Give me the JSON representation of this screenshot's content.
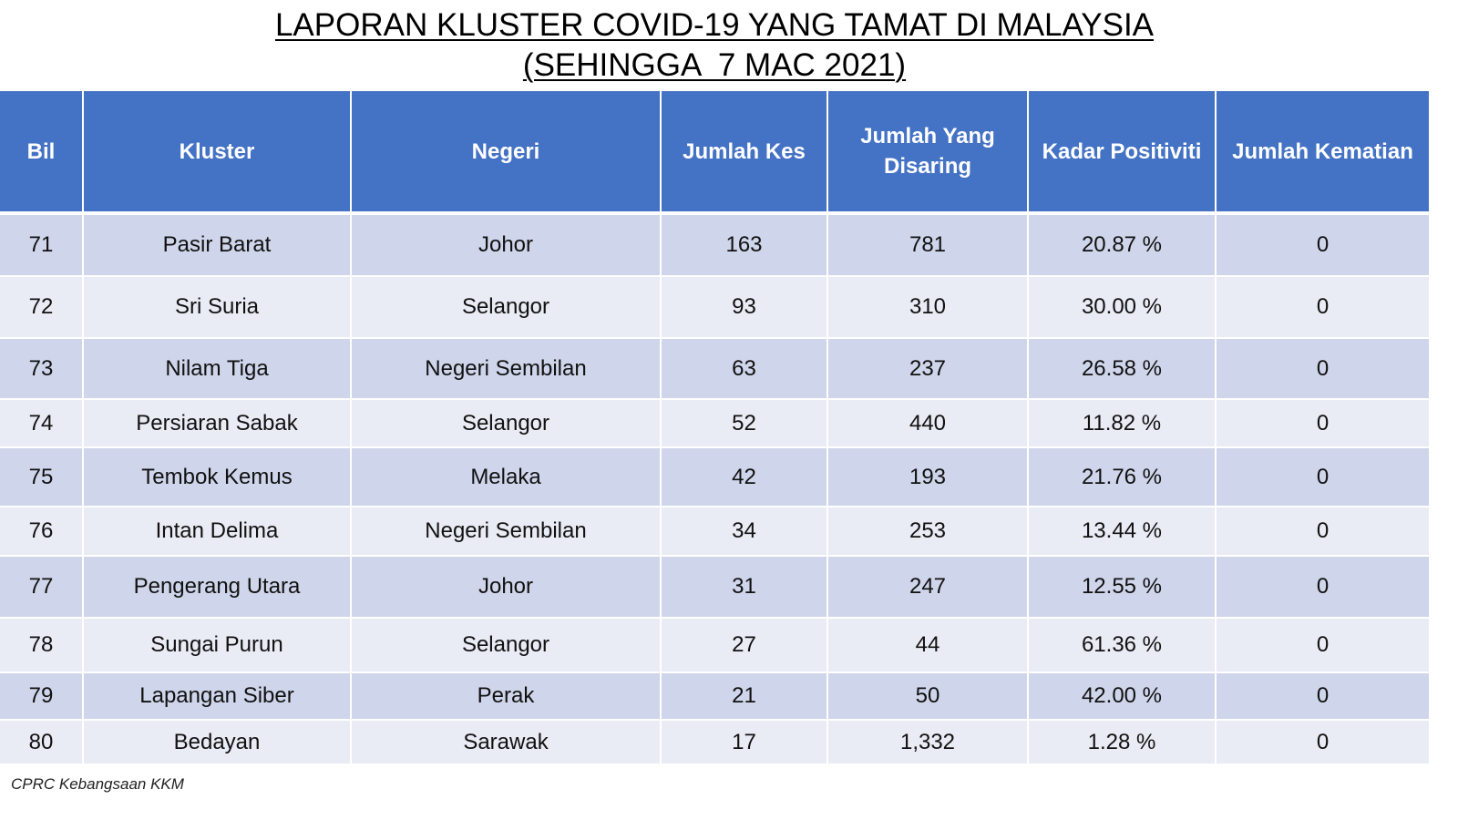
{
  "title": {
    "line1": "LAPORAN KLUSTER COVID-19 YANG TAMAT DI MALAYSIA",
    "line2": "(SEHINGGA  7 MAC 2021)"
  },
  "table": {
    "headers": [
      "Bil",
      "Kluster",
      "Negeri",
      "Jumlah Kes",
      "Jumlah Yang Disaring",
      "Kadar Positiviti",
      "Jumlah Kematian"
    ],
    "rows": [
      [
        "71",
        "Pasir Barat",
        "Johor",
        "163",
        "781",
        "20.87 %",
        "0"
      ],
      [
        "72",
        "Sri Suria",
        "Selangor",
        "93",
        "310",
        "30.00 %",
        "0"
      ],
      [
        "73",
        "Nilam Tiga",
        "Negeri Sembilan",
        "63",
        "237",
        "26.58 %",
        "0"
      ],
      [
        "74",
        "Persiaran Sabak",
        "Selangor",
        "52",
        "440",
        "11.82 %",
        "0"
      ],
      [
        "75",
        "Tembok Kemus",
        "Melaka",
        "42",
        "193",
        "21.76 %",
        "0"
      ],
      [
        "76",
        "Intan Delima",
        "Negeri Sembilan",
        "34",
        "253",
        "13.44 %",
        "0"
      ],
      [
        "77",
        "Pengerang Utara",
        "Johor",
        "31",
        "247",
        "12.55 %",
        "0"
      ],
      [
        "78",
        "Sungai Purun",
        "Selangor",
        "27",
        "44",
        "61.36 %",
        "0"
      ],
      [
        "79",
        "Lapangan Siber",
        "Perak",
        "21",
        "50",
        "42.00 %",
        "0"
      ],
      [
        "80",
        "Bedayan",
        "Sarawak",
        "17",
        "1,332",
        "1.28 %",
        "0"
      ]
    ]
  },
  "source": "CPRC Kebangsaan KKM",
  "colors": {
    "header_bg": "#4472c4",
    "row_dark": "#cfd5ea",
    "row_light": "#e9ebf5"
  }
}
